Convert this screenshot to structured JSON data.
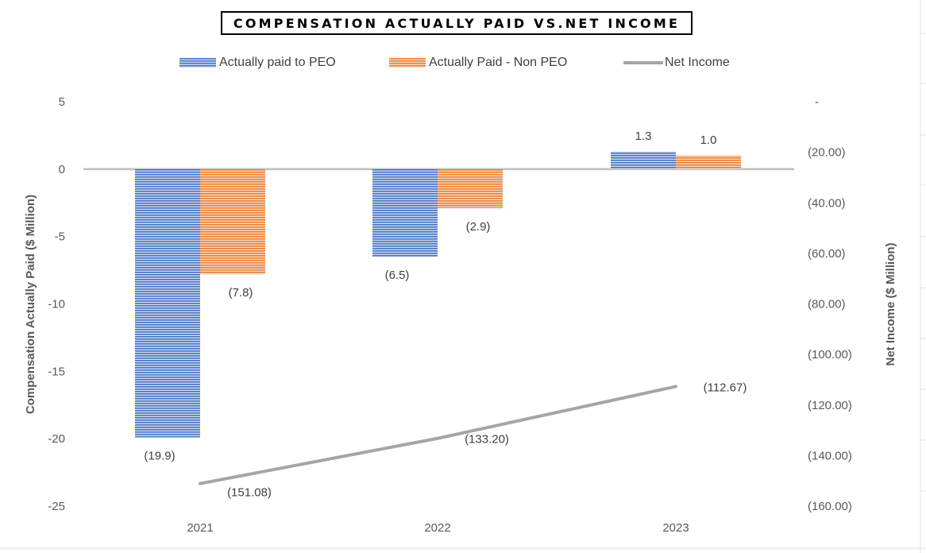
{
  "chart_data": {
    "type": "bar",
    "title": "COMPENSATION ACTUALLY PAID VS.NET INCOME",
    "categories": [
      "2021",
      "2022",
      "2023"
    ],
    "series": [
      {
        "name": "Actually paid to PEO",
        "kind": "bar",
        "axis": "left",
        "color": "#4472C4",
        "values": [
          -19.9,
          -6.5,
          1.3
        ],
        "labels": [
          "(19.9)",
          "(6.5)",
          "1.3"
        ]
      },
      {
        "name": "Actually Paid - Non PEO",
        "kind": "bar",
        "axis": "left",
        "color": "#ED7D31",
        "values": [
          -7.8,
          -2.9,
          1.0
        ],
        "labels": [
          "(7.8)",
          "(2.9)",
          "1.0"
        ]
      },
      {
        "name": "Net Income",
        "kind": "line",
        "axis": "right",
        "color": "#A5A5A5",
        "values": [
          -151.08,
          -133.2,
          -112.67
        ],
        "labels": [
          "(151.08)",
          "(133.20)",
          "(112.67)"
        ]
      }
    ],
    "ylabel": "Compensation Actually Paid ($ Million)",
    "y2label": "Net Income ($ Million)",
    "ylim": [
      -25,
      5
    ],
    "y2lim": [
      -160,
      0
    ],
    "yticks": [
      "5",
      "0",
      "-5",
      "-10",
      "-15",
      "-20",
      "-25"
    ],
    "y2ticks": [
      "-",
      "(20.00)",
      "(40.00)",
      "(60.00)",
      "(80.00)",
      "(100.00)",
      "(120.00)",
      "(140.00)",
      "(160.00)"
    ],
    "legend_position": "top"
  }
}
